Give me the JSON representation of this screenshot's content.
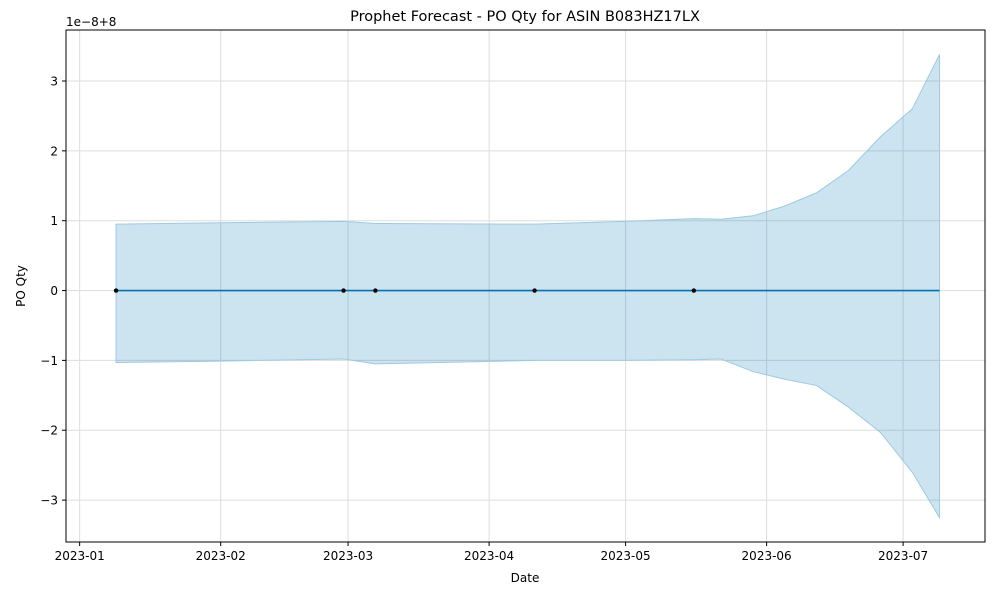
{
  "chart_data": {
    "type": "line",
    "title": "Prophet Forecast - PO Qty for ASIN B083HZ17LX",
    "xlabel": "Date",
    "ylabel": "PO Qty",
    "offset_label": "1e−8+8",
    "x_tick_labels": [
      "2023-01",
      "2023-02",
      "2023-03",
      "2023-04",
      "2023-05",
      "2023-06",
      "2023-07"
    ],
    "x_tick_dates": [
      "2023-01-01",
      "2023-02-01",
      "2023-03-01",
      "2023-04-01",
      "2023-05-01",
      "2023-06-01",
      "2023-07-01"
    ],
    "y_tick_labels": [
      "−3",
      "−2",
      "−1",
      "0",
      "1",
      "2",
      "3"
    ],
    "y_tick_values": [
      -3,
      -2,
      -1,
      0,
      1,
      2,
      3
    ],
    "xlim": [
      "2022-12-29",
      "2023-07-19"
    ],
    "ylim": [
      -3.6,
      3.73
    ],
    "grid": true,
    "colors": {
      "forecast": "#0072B2",
      "band": "#0072B2",
      "band_edge": "#9ecae1",
      "actual": "#000000",
      "grid": "#dddddd"
    },
    "series": [
      {
        "name": "forecast",
        "x": [
          "2023-01-09",
          "2023-07-09"
        ],
        "y": [
          0,
          0
        ]
      },
      {
        "name": "uncertainty",
        "x": [
          "2023-01-09",
          "2023-02-01",
          "2023-02-28",
          "2023-03-07",
          "2023-04-11",
          "2023-05-01",
          "2023-05-16",
          "2023-05-22",
          "2023-05-29",
          "2023-06-05",
          "2023-06-12",
          "2023-06-19",
          "2023-06-26",
          "2023-07-03",
          "2023-07-09"
        ],
        "upper": [
          0.95,
          0.97,
          0.99,
          0.96,
          0.95,
          0.99,
          1.03,
          1.02,
          1.07,
          1.21,
          1.4,
          1.72,
          2.2,
          2.6,
          3.38
        ],
        "lower": [
          -1.03,
          -1.01,
          -0.98,
          -1.05,
          -1.0,
          -1.0,
          -0.99,
          -0.98,
          -1.16,
          -1.27,
          -1.36,
          -1.67,
          -2.03,
          -2.6,
          -3.25
        ]
      },
      {
        "name": "actual",
        "x": [
          "2023-01-09",
          "2023-02-28",
          "2023-03-07",
          "2023-04-11",
          "2023-05-16"
        ],
        "y": [
          0,
          0,
          0,
          0,
          0
        ]
      }
    ]
  }
}
